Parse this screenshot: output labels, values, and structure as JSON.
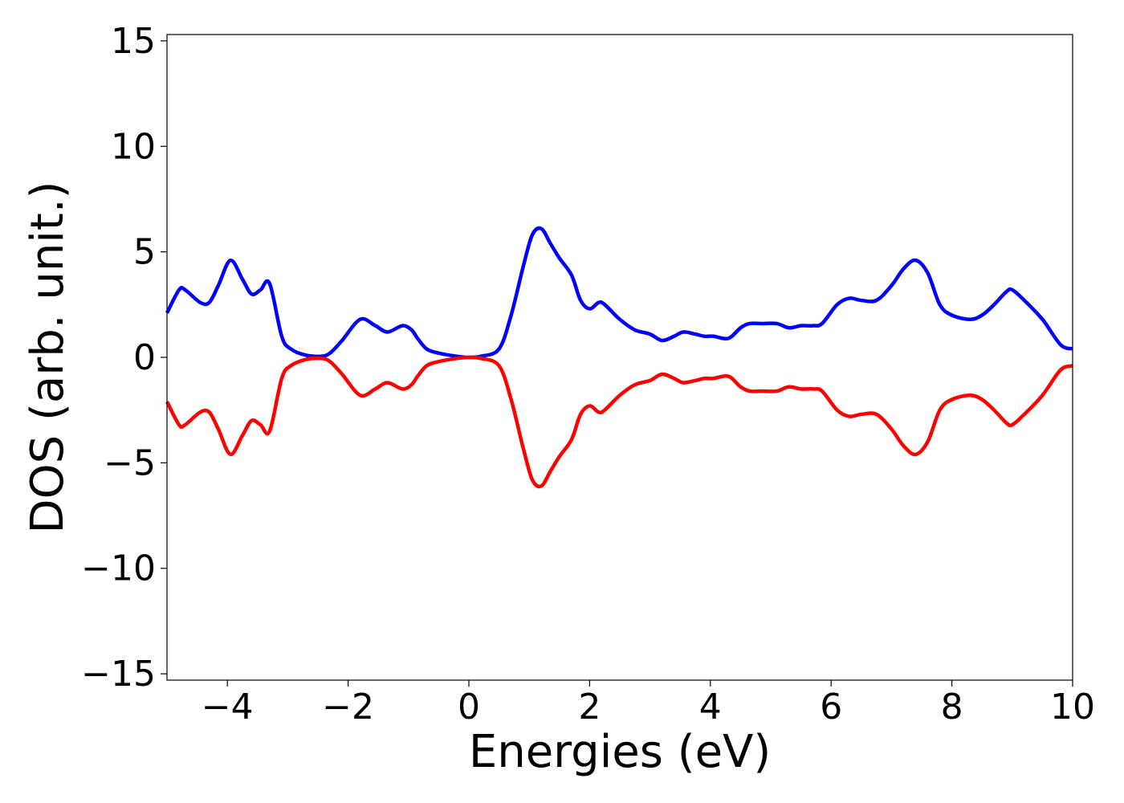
{
  "chart_data": {
    "type": "line",
    "title": "",
    "xlabel": "Energies (eV)",
    "ylabel": "DOS (arb. unit.)",
    "xlim": [
      -5,
      10
    ],
    "ylim": [
      -15.3,
      15.3
    ],
    "xticks": [
      -4,
      -2,
      0,
      2,
      4,
      6,
      8,
      10
    ],
    "xtick_labels": [
      "−4",
      "−2",
      "0",
      "2",
      "4",
      "6",
      "8",
      "10"
    ],
    "yticks": [
      15,
      10,
      5,
      0,
      -5,
      -10,
      -15
    ],
    "ytick_labels": [
      "15",
      "10",
      "5",
      "0",
      "−5",
      "−10",
      "−15"
    ],
    "grid": false,
    "legend": "none",
    "series": [
      {
        "color": "#0000ff",
        "x": [
          -5.0,
          -4.8,
          -4.7,
          -4.45,
          -4.3,
          -4.15,
          -3.95,
          -3.75,
          -3.6,
          -3.45,
          -3.3,
          -3.1,
          -2.95,
          -2.7,
          -2.45,
          -2.3,
          -2.1,
          -1.8,
          -1.55,
          -1.35,
          -1.1,
          -0.95,
          -0.85,
          -0.7,
          -0.5,
          -0.2,
          0.0,
          0.2,
          0.5,
          0.7,
          0.9,
          1.05,
          1.2,
          1.35,
          1.5,
          1.7,
          1.85,
          2.0,
          2.15,
          2.25,
          2.5,
          2.75,
          3.0,
          3.2,
          3.4,
          3.55,
          3.75,
          3.9,
          4.05,
          4.3,
          4.5,
          4.65,
          4.85,
          5.1,
          5.3,
          5.5,
          5.7,
          5.85,
          6.1,
          6.3,
          6.5,
          6.75,
          7.0,
          7.2,
          7.4,
          7.6,
          7.8,
          8.0,
          8.3,
          8.5,
          8.7,
          8.9,
          9.0,
          9.2,
          9.5,
          9.8,
          10.0
        ],
        "y": [
          2.1,
          3.2,
          3.2,
          2.6,
          2.6,
          3.4,
          4.6,
          3.7,
          3.0,
          3.2,
          3.5,
          1.0,
          0.4,
          0.1,
          0.05,
          0.2,
          0.8,
          1.8,
          1.5,
          1.2,
          1.5,
          1.3,
          0.9,
          0.4,
          0.2,
          0.05,
          0.0,
          0.05,
          0.4,
          2.0,
          4.3,
          5.8,
          6.1,
          5.4,
          4.7,
          3.9,
          2.7,
          2.3,
          2.6,
          2.5,
          1.8,
          1.3,
          1.1,
          0.8,
          1.0,
          1.2,
          1.1,
          1.0,
          1.0,
          0.9,
          1.4,
          1.6,
          1.6,
          1.6,
          1.4,
          1.5,
          1.5,
          1.6,
          2.5,
          2.8,
          2.7,
          2.7,
          3.4,
          4.2,
          4.6,
          4.0,
          2.5,
          2.0,
          1.8,
          2.0,
          2.5,
          3.1,
          3.2,
          2.7,
          1.8,
          0.6,
          0.4
        ]
      },
      {
        "color": "#ff0000",
        "x": [
          -5.0,
          -4.8,
          -4.7,
          -4.45,
          -4.3,
          -4.15,
          -3.95,
          -3.75,
          -3.6,
          -3.45,
          -3.3,
          -3.1,
          -2.95,
          -2.7,
          -2.45,
          -2.3,
          -2.1,
          -1.8,
          -1.55,
          -1.35,
          -1.1,
          -0.95,
          -0.85,
          -0.7,
          -0.5,
          -0.2,
          0.0,
          0.2,
          0.5,
          0.7,
          0.9,
          1.05,
          1.2,
          1.35,
          1.5,
          1.7,
          1.85,
          2.0,
          2.15,
          2.25,
          2.5,
          2.75,
          3.0,
          3.2,
          3.4,
          3.55,
          3.75,
          3.9,
          4.05,
          4.3,
          4.5,
          4.65,
          4.85,
          5.1,
          5.3,
          5.5,
          5.7,
          5.85,
          6.1,
          6.3,
          6.5,
          6.75,
          7.0,
          7.2,
          7.4,
          7.6,
          7.8,
          8.0,
          8.3,
          8.5,
          8.7,
          8.9,
          9.0,
          9.2,
          9.5,
          9.8,
          10.0
        ],
        "y": [
          -2.1,
          -3.2,
          -3.2,
          -2.6,
          -2.6,
          -3.4,
          -4.6,
          -3.7,
          -3.0,
          -3.2,
          -3.5,
          -1.0,
          -0.4,
          -0.1,
          -0.05,
          -0.2,
          -0.8,
          -1.8,
          -1.5,
          -1.2,
          -1.5,
          -1.3,
          -0.9,
          -0.4,
          -0.2,
          -0.05,
          0.0,
          -0.05,
          -0.4,
          -2.0,
          -4.3,
          -5.8,
          -6.1,
          -5.4,
          -4.7,
          -3.9,
          -2.7,
          -2.3,
          -2.6,
          -2.5,
          -1.8,
          -1.3,
          -1.1,
          -0.8,
          -1.0,
          -1.2,
          -1.1,
          -1.0,
          -1.0,
          -0.9,
          -1.4,
          -1.6,
          -1.6,
          -1.6,
          -1.4,
          -1.5,
          -1.5,
          -1.6,
          -2.5,
          -2.8,
          -2.7,
          -2.7,
          -3.4,
          -4.2,
          -4.6,
          -4.0,
          -2.5,
          -2.0,
          -1.8,
          -2.0,
          -2.5,
          -3.1,
          -3.2,
          -2.7,
          -1.8,
          -0.6,
          -0.4
        ]
      }
    ]
  }
}
